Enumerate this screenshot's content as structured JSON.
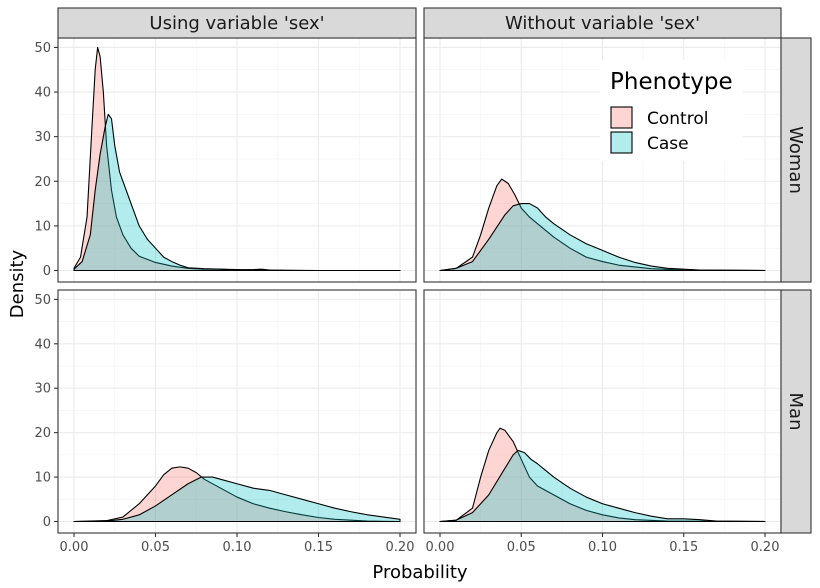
{
  "chart_data": {
    "type": "area",
    "subtype": "density-faceted",
    "xlabel": "Probability",
    "ylabel": "Density",
    "xlim": [
      0,
      0.2
    ],
    "ylim": [
      0,
      52
    ],
    "x_ticks": [
      "0.00",
      "0.05",
      "0.10",
      "0.15",
      "0.20"
    ],
    "x_tick_values": [
      0,
      0.05,
      0.1,
      0.15,
      0.2
    ],
    "y_ticks": [
      "0",
      "10",
      "20",
      "30",
      "40",
      "50"
    ],
    "y_tick_values": [
      0,
      10,
      20,
      30,
      40,
      50
    ],
    "grid": true,
    "column_facets": [
      "Using variable 'sex'",
      "Without variable 'sex'"
    ],
    "row_facets": [
      "Woman",
      "Man"
    ],
    "legend": {
      "title": "Phenotype",
      "placement": "inside top-right of the Woman / Without variable 'sex' panel",
      "entries": [
        {
          "label": "Control",
          "color": "#F8766D"
        },
        {
          "label": "Case",
          "color": "#00BFC4"
        }
      ]
    },
    "fill_alpha": 0.3,
    "panels": [
      {
        "column": "Using variable 'sex'",
        "row": "Woman",
        "series": [
          {
            "name": "Control",
            "points": [
              [
                0,
                0.5
              ],
              [
                0.004,
                3
              ],
              [
                0.008,
                12
              ],
              [
                0.011,
                32
              ],
              [
                0.013,
                45
              ],
              [
                0.0145,
                50
              ],
              [
                0.016,
                48
              ],
              [
                0.018,
                40
              ],
              [
                0.02,
                28
              ],
              [
                0.023,
                18
              ],
              [
                0.026,
                12
              ],
              [
                0.03,
                8
              ],
              [
                0.035,
                5
              ],
              [
                0.04,
                3.2
              ],
              [
                0.05,
                1.8
              ],
              [
                0.06,
                1
              ],
              [
                0.07,
                0.5
              ],
              [
                0.08,
                0.3
              ],
              [
                0.09,
                0.3
              ],
              [
                0.1,
                0.1
              ],
              [
                0.11,
                0.2
              ],
              [
                0.115,
                0.3
              ],
              [
                0.12,
                0.1
              ],
              [
                0.15,
                0
              ],
              [
                0.2,
                0
              ]
            ]
          },
          {
            "name": "Case",
            "points": [
              [
                0,
                0.3
              ],
              [
                0.005,
                2
              ],
              [
                0.01,
                8
              ],
              [
                0.013,
                18
              ],
              [
                0.016,
                26
              ],
              [
                0.019,
                32
              ],
              [
                0.021,
                35
              ],
              [
                0.023,
                34
              ],
              [
                0.025,
                28
              ],
              [
                0.028,
                22
              ],
              [
                0.032,
                18
              ],
              [
                0.036,
                14
              ],
              [
                0.04,
                10
              ],
              [
                0.045,
                7
              ],
              [
                0.05,
                5
              ],
              [
                0.055,
                3
              ],
              [
                0.06,
                2
              ],
              [
                0.065,
                1.2
              ],
              [
                0.07,
                0.6
              ],
              [
                0.08,
                0.4
              ],
              [
                0.09,
                0.3
              ],
              [
                0.1,
                0.2
              ],
              [
                0.115,
                0.1
              ],
              [
                0.13,
                0
              ],
              [
                0.2,
                0
              ]
            ]
          }
        ]
      },
      {
        "column": "Without variable 'sex'",
        "row": "Woman",
        "series": [
          {
            "name": "Control",
            "points": [
              [
                0,
                0
              ],
              [
                0.01,
                0.5
              ],
              [
                0.02,
                3
              ],
              [
                0.025,
                8
              ],
              [
                0.03,
                14
              ],
              [
                0.035,
                19
              ],
              [
                0.038,
                20.5
              ],
              [
                0.042,
                19.5
              ],
              [
                0.046,
                17
              ],
              [
                0.05,
                14
              ],
              [
                0.055,
                12
              ],
              [
                0.06,
                10.5
              ],
              [
                0.07,
                7.5
              ],
              [
                0.08,
                5
              ],
              [
                0.09,
                3
              ],
              [
                0.1,
                2
              ],
              [
                0.11,
                1.2
              ],
              [
                0.12,
                0.8
              ],
              [
                0.13,
                0.4
              ],
              [
                0.15,
                0.1
              ],
              [
                0.2,
                0
              ]
            ]
          },
          {
            "name": "Case",
            "points": [
              [
                0,
                0
              ],
              [
                0.01,
                0.5
              ],
              [
                0.02,
                2
              ],
              [
                0.03,
                7
              ],
              [
                0.04,
                12.5
              ],
              [
                0.045,
                14.5
              ],
              [
                0.05,
                15
              ],
              [
                0.055,
                15
              ],
              [
                0.06,
                14
              ],
              [
                0.065,
                12
              ],
              [
                0.07,
                10.5
              ],
              [
                0.08,
                8
              ],
              [
                0.09,
                6
              ],
              [
                0.1,
                4.5
              ],
              [
                0.11,
                3
              ],
              [
                0.12,
                1.8
              ],
              [
                0.13,
                1
              ],
              [
                0.14,
                0.5
              ],
              [
                0.16,
                0.1
              ],
              [
                0.2,
                0
              ]
            ]
          }
        ]
      },
      {
        "column": "Using variable 'sex'",
        "row": "Man",
        "series": [
          {
            "name": "Control",
            "points": [
              [
                0,
                0
              ],
              [
                0.02,
                0.2
              ],
              [
                0.03,
                1
              ],
              [
                0.04,
                4
              ],
              [
                0.05,
                8
              ],
              [
                0.055,
                10.5
              ],
              [
                0.06,
                12
              ],
              [
                0.065,
                12.3
              ],
              [
                0.07,
                12
              ],
              [
                0.075,
                11
              ],
              [
                0.08,
                9.5
              ],
              [
                0.09,
                7.5
              ],
              [
                0.1,
                5.5
              ],
              [
                0.11,
                4
              ],
              [
                0.12,
                3
              ],
              [
                0.13,
                2.2
              ],
              [
                0.14,
                1.5
              ],
              [
                0.15,
                0.9
              ],
              [
                0.16,
                0.5
              ],
              [
                0.18,
                0.1
              ],
              [
                0.2,
                0
              ]
            ]
          },
          {
            "name": "Case",
            "points": [
              [
                0,
                0
              ],
              [
                0.02,
                0.1
              ],
              [
                0.03,
                0.5
              ],
              [
                0.04,
                1.5
              ],
              [
                0.05,
                3.5
              ],
              [
                0.06,
                6
              ],
              [
                0.07,
                8.5
              ],
              [
                0.078,
                10
              ],
              [
                0.085,
                10
              ],
              [
                0.09,
                9.5
              ],
              [
                0.1,
                8.5
              ],
              [
                0.11,
                7.5
              ],
              [
                0.12,
                7
              ],
              [
                0.13,
                6
              ],
              [
                0.14,
                5
              ],
              [
                0.15,
                4
              ],
              [
                0.16,
                3
              ],
              [
                0.17,
                2.2
              ],
              [
                0.18,
                1.5
              ],
              [
                0.19,
                1
              ],
              [
                0.2,
                0.5
              ]
            ]
          }
        ]
      },
      {
        "column": "Without variable 'sex'",
        "row": "Man",
        "series": [
          {
            "name": "Control",
            "points": [
              [
                0,
                0
              ],
              [
                0.01,
                0.3
              ],
              [
                0.02,
                3
              ],
              [
                0.025,
                10
              ],
              [
                0.03,
                16
              ],
              [
                0.035,
                20
              ],
              [
                0.037,
                21
              ],
              [
                0.04,
                20.5
              ],
              [
                0.045,
                18
              ],
              [
                0.05,
                14
              ],
              [
                0.055,
                10
              ],
              [
                0.06,
                8
              ],
              [
                0.07,
                6
              ],
              [
                0.08,
                4
              ],
              [
                0.09,
                2.5
              ],
              [
                0.1,
                1.5
              ],
              [
                0.11,
                0.8
              ],
              [
                0.12,
                0.4
              ],
              [
                0.14,
                0.1
              ],
              [
                0.2,
                0
              ]
            ]
          },
          {
            "name": "Case",
            "points": [
              [
                0,
                0
              ],
              [
                0.01,
                0.3
              ],
              [
                0.02,
                2
              ],
              [
                0.03,
                6
              ],
              [
                0.04,
                12
              ],
              [
                0.045,
                15
              ],
              [
                0.048,
                16
              ],
              [
                0.052,
                15.5
              ],
              [
                0.056,
                14
              ],
              [
                0.06,
                13
              ],
              [
                0.065,
                11.5
              ],
              [
                0.07,
                10
              ],
              [
                0.08,
                7.5
              ],
              [
                0.09,
                5.5
              ],
              [
                0.1,
                4
              ],
              [
                0.11,
                3
              ],
              [
                0.12,
                2
              ],
              [
                0.13,
                1.2
              ],
              [
                0.14,
                0.6
              ],
              [
                0.15,
                0.6
              ],
              [
                0.16,
                0.4
              ],
              [
                0.17,
                0.1
              ],
              [
                0.2,
                0
              ]
            ]
          }
        ]
      }
    ]
  }
}
